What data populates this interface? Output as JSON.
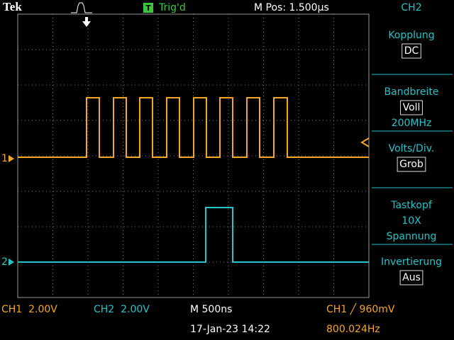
{
  "header": {
    "brand": "Tek",
    "trigger_status": "Trig'd",
    "trigger_icon": "T",
    "position": "M Pos: 1.500µs",
    "menu_title": "CH2"
  },
  "channel_markers": [
    "1",
    "2"
  ],
  "menu": [
    {
      "label": "Kopplung",
      "value": "DC"
    },
    {
      "label": "Bandbreite",
      "value": "Voll",
      "detail": "200MHz"
    },
    {
      "label": "Volts/Div.",
      "value": "Grob"
    },
    {
      "label": "Tastkopf",
      "detail": "10X",
      "extra": "Spannung"
    },
    {
      "label": "Invertierung",
      "value": "Aus"
    }
  ],
  "footer": {
    "ch1_scale": "CH1  2.00V",
    "ch2_scale": "CH2  2.00V",
    "timebase": "M 500ns",
    "trigger": "CH1 ╱ 960mV",
    "datetime": "17-Jan-23 14:22",
    "frequency": "800.024Hz"
  }
}
